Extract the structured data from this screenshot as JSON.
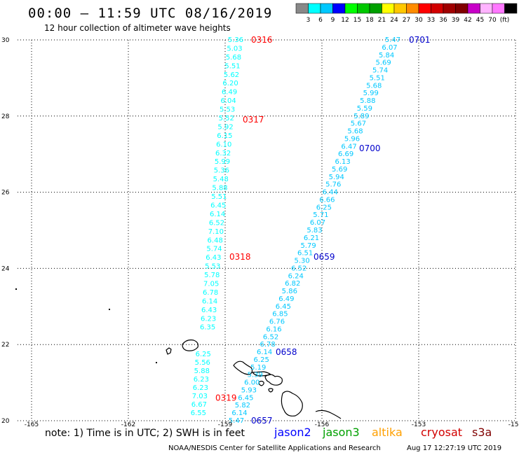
{
  "header": {
    "title": "00:00 – 11:59 UTC 08/16/2019",
    "subtitle": "12 hour collection of altimeter wave heights"
  },
  "legend": {
    "colors": [
      "#888888",
      "#00ffff",
      "#00c8ff",
      "#0000ff",
      "#00ff00",
      "#00c800",
      "#00a000",
      "#ffff00",
      "#ffc800",
      "#ff8c00",
      "#ff0000",
      "#d20000",
      "#a00000",
      "#800000",
      "#c800c8",
      "#ffb4ff",
      "#ff78ff",
      "#000000"
    ],
    "labels": [
      "3",
      "6",
      "9",
      "12",
      "15",
      "18",
      "21",
      "24",
      "27",
      "30",
      "33",
      "36",
      "39",
      "42",
      "45",
      "70",
      "(ft)"
    ]
  },
  "axes": {
    "x_ticks": [
      "-165",
      "-162",
      "-159",
      "-156",
      "-153",
      "-150"
    ],
    "y_ticks": [
      "30",
      "28",
      "26",
      "24",
      "22",
      "20"
    ]
  },
  "tracks": [
    {
      "satellite": "cryosat",
      "color": "#00ffff",
      "values": [
        "5.36",
        "5.03",
        "5.68",
        "5.51",
        "5.62",
        "6.20",
        "6.49",
        "6.04",
        "5.53",
        "5.52",
        "5.92",
        "6.15",
        "6.10",
        "6.32",
        "5.99",
        "5.36",
        "5.48",
        "5.88",
        "5.51",
        "6.45",
        "6.14",
        "6.52",
        "7.10",
        "6.48",
        "5.74",
        "6.43",
        "5.53",
        "5.78",
        "7.05",
        "6.78",
        "6.14",
        "6.43",
        "6.23",
        "6.35",
        "6.25",
        "5.56",
        "5.88",
        "6.23",
        "6.23",
        "7.03",
        "6.67",
        "6.55"
      ],
      "time_labels": [
        {
          "text": "0316",
          "lat": 30.0
        },
        {
          "text": "0317",
          "lat": 27.9
        },
        {
          "text": "0318",
          "lat": 24.3
        },
        {
          "text": "0319",
          "lat": 20.6
        }
      ]
    },
    {
      "satellite": "jason2",
      "color": "#00c8ff",
      "values": [
        "5.47",
        "6.07",
        "5.84",
        "5.69",
        "5.74",
        "5.51",
        "5.68",
        "5.99",
        "5.88",
        "5.59",
        "5.89",
        "5.67",
        "5.68",
        "5.96",
        "6.47",
        "6.69",
        "6.13",
        "5.69",
        "5.94",
        "5.76",
        "6.44",
        "6.66",
        "6.25",
        "5.71",
        "6.07",
        "5.83",
        "6.21",
        "5.79",
        "6.51",
        "5.30",
        "6.52",
        "6.24",
        "6.82",
        "5.86",
        "6.49",
        "6.45",
        "6.85",
        "6.76",
        "6.16",
        "6.52",
        "6.78",
        "6.14",
        "6.25",
        "5.19",
        "5.39",
        "6.00",
        "5.93",
        "6.45",
        "5.82",
        "6.14",
        "5.47"
      ],
      "time_labels": [
        {
          "text": "0701",
          "lat": 30.0
        },
        {
          "text": "0700",
          "lat": 27.15
        },
        {
          "text": "0659",
          "lat": 24.3
        },
        {
          "text": "0658",
          "lat": 21.8
        },
        {
          "text": "0657",
          "lat": 20.0
        }
      ]
    }
  ],
  "notes": {
    "note_text": "note: 1) Time is in UTC; 2) SWH is in feet",
    "satellites": [
      {
        "name": "jason2",
        "color": "#0000ff"
      },
      {
        "name": "jason3",
        "color": "#00a000"
      },
      {
        "name": "altika",
        "color": "#ffa000"
      },
      {
        "name": "cryosat",
        "color": "#d20000"
      },
      {
        "name": "s3a",
        "color": "#800000"
      }
    ]
  },
  "footer": {
    "credit": "NOAA/NESDIS Center for Satellite Applications and Research",
    "timestamp": "Aug 17 12:27:19 UTC 2019"
  },
  "colors": {
    "time_label_cryosat": "#ff0000",
    "time_label_jason2": "#0000cc"
  }
}
